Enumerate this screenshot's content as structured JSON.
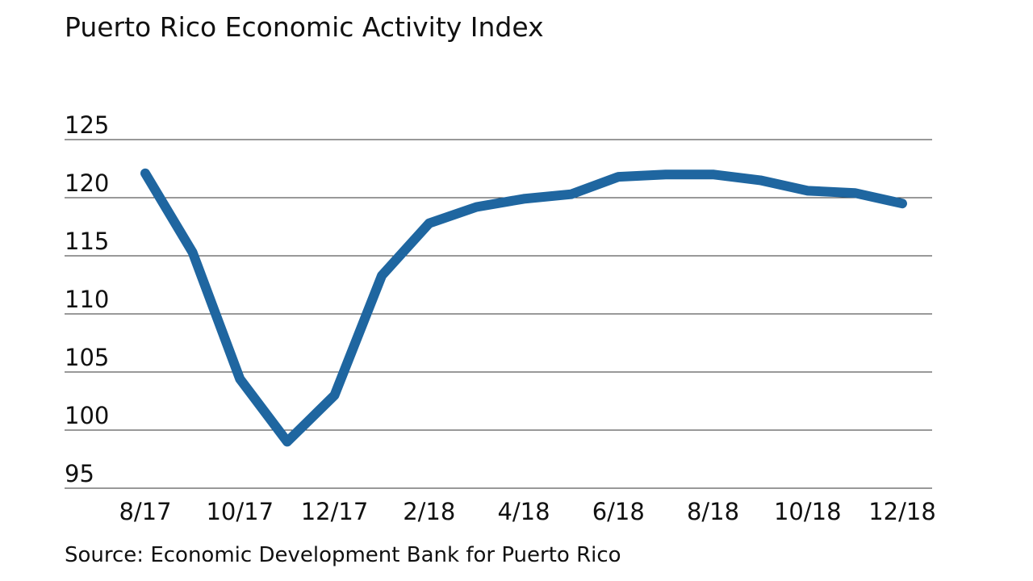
{
  "chart_data": {
    "type": "line",
    "subtitle": "Puerto Rico Economic Activity Index",
    "source": "Source: Economic Development Bank for Puerto Rico",
    "categories": [
      "8/17",
      null,
      "10/17",
      null,
      "12/17",
      null,
      "2/18",
      null,
      "4/18",
      null,
      "6/18",
      null,
      "8/18",
      null,
      "10/18",
      null,
      "12/18"
    ],
    "values": [
      122.1,
      115.3,
      104.4,
      99.0,
      103.0,
      113.3,
      117.8,
      119.2,
      119.9,
      120.3,
      121.8,
      122.0,
      122.0,
      121.5,
      120.6,
      120.4,
      119.5
    ],
    "color": "#1f66a0",
    "ylim": [
      95,
      125
    ],
    "yticks": [
      95,
      100,
      105,
      110,
      115,
      120,
      125
    ],
    "grid": true
  }
}
